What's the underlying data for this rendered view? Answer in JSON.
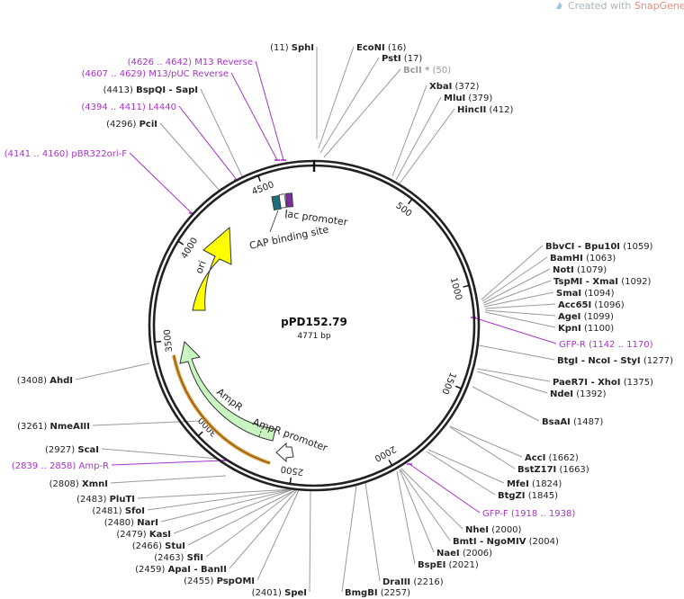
{
  "watermark": {
    "prefix": "Created with ",
    "brand": "SnapGene",
    "suffix": "®"
  },
  "plasmid": {
    "name": "pPD152.79",
    "length": "4771 bp"
  },
  "colors": {
    "ring": "#222222",
    "primer": "#a933cc",
    "ori": "#ffff00",
    "ampr": "#c8f5c0",
    "promoter": "#ffffff",
    "lac": "#1f6e7a",
    "cap": "#7a2f9a",
    "amp_band": "#d79a35"
  },
  "ticks": [
    "500",
    "1000",
    "1500",
    "2000",
    "2500",
    "3000",
    "3500",
    "4000",
    "4500"
  ],
  "features": {
    "ori": "ori",
    "ampr": "AmpR",
    "ampr_promoter": "AmpR promoter",
    "lac_promoter": "lac promoter",
    "cap_site": "CAP binding site"
  },
  "sites": [
    {
      "pos": "(11)",
      "name": "SphI"
    },
    {
      "name": "EcoNI",
      "pos": "(16)"
    },
    {
      "name": "PstI",
      "pos": "(17)"
    },
    {
      "name": "BclI *",
      "pos": "(50)",
      "style": "gray"
    },
    {
      "name": "XbaI",
      "pos": "(372)"
    },
    {
      "name": "MluI",
      "pos": "(379)"
    },
    {
      "name": "HincII",
      "pos": "(412)"
    },
    {
      "name": "BbvCI - Bpu10I",
      "pos": "(1059)"
    },
    {
      "name": "BamHI",
      "pos": "(1063)"
    },
    {
      "name": "NotI",
      "pos": "(1079)"
    },
    {
      "name": "TspMI - XmaI",
      "pos": "(1092)"
    },
    {
      "name": "SmaI",
      "pos": "(1094)"
    },
    {
      "name": "Acc65I",
      "pos": "(1096)"
    },
    {
      "name": "AgeI",
      "pos": "(1099)"
    },
    {
      "name": "KpnI",
      "pos": "(1100)"
    },
    {
      "name": "GFP-R",
      "pos": "(1142 .. 1170)",
      "style": "primer"
    },
    {
      "name": "BtgI - NcoI - StyI",
      "pos": "(1277)"
    },
    {
      "name": "PaeR7I - XhoI",
      "pos": "(1375)"
    },
    {
      "name": "NdeI",
      "pos": "(1392)"
    },
    {
      "name": "BsaAI",
      "pos": "(1487)"
    },
    {
      "name": "AccI",
      "pos": "(1662)"
    },
    {
      "name": "BstZ17I",
      "pos": "(1663)"
    },
    {
      "name": "MfeI",
      "pos": "(1824)"
    },
    {
      "name": "BtgZI",
      "pos": "(1845)"
    },
    {
      "name": "GFP-F",
      "pos": "(1918 .. 1938)",
      "style": "primer"
    },
    {
      "name": "NheI",
      "pos": "(2000)"
    },
    {
      "name": "BmtI - NgoMIV",
      "pos": "(2004)"
    },
    {
      "name": "NaeI",
      "pos": "(2006)"
    },
    {
      "name": "BspEI",
      "pos": "(2021)"
    },
    {
      "name": "DraIII",
      "pos": "(2216)"
    },
    {
      "name": "BmgBI",
      "pos": "(2257)"
    },
    {
      "pos": "(2401)",
      "name": "SpeI"
    },
    {
      "pos": "(2455)",
      "name": "PspOMI"
    },
    {
      "pos": "(2459)",
      "name": "ApaI - BanII"
    },
    {
      "pos": "(2463)",
      "name": "SfiI"
    },
    {
      "pos": "(2466)",
      "name": "StuI"
    },
    {
      "pos": "(2479)",
      "name": "KasI"
    },
    {
      "pos": "(2480)",
      "name": "NarI"
    },
    {
      "pos": "(2481)",
      "name": "SfoI"
    },
    {
      "pos": "(2483)",
      "name": "PluTI"
    },
    {
      "pos": "(2808)",
      "name": "XmnI"
    },
    {
      "pos": "(2839 .. 2858)",
      "name": "Amp-R",
      "style": "primer"
    },
    {
      "pos": "(2927)",
      "name": "ScaI"
    },
    {
      "pos": "(3261)",
      "name": "NmeAIII"
    },
    {
      "pos": "(3408)",
      "name": "AhdI"
    },
    {
      "pos": "(4141 .. 4160)",
      "name": "pBR322ori-F",
      "style": "primer"
    },
    {
      "pos": "(4296)",
      "name": "PciI"
    },
    {
      "pos": "(4394 .. 4411)",
      "name": "L4440",
      "style": "primer"
    },
    {
      "pos": "(4413)",
      "name": "BspQI - SapI"
    },
    {
      "pos": "(4607 .. 4629)",
      "name": "M13/pUC Reverse",
      "style": "primer"
    },
    {
      "pos": "(4626 .. 4642)",
      "name": "M13 Reverse",
      "style": "primer"
    }
  ]
}
